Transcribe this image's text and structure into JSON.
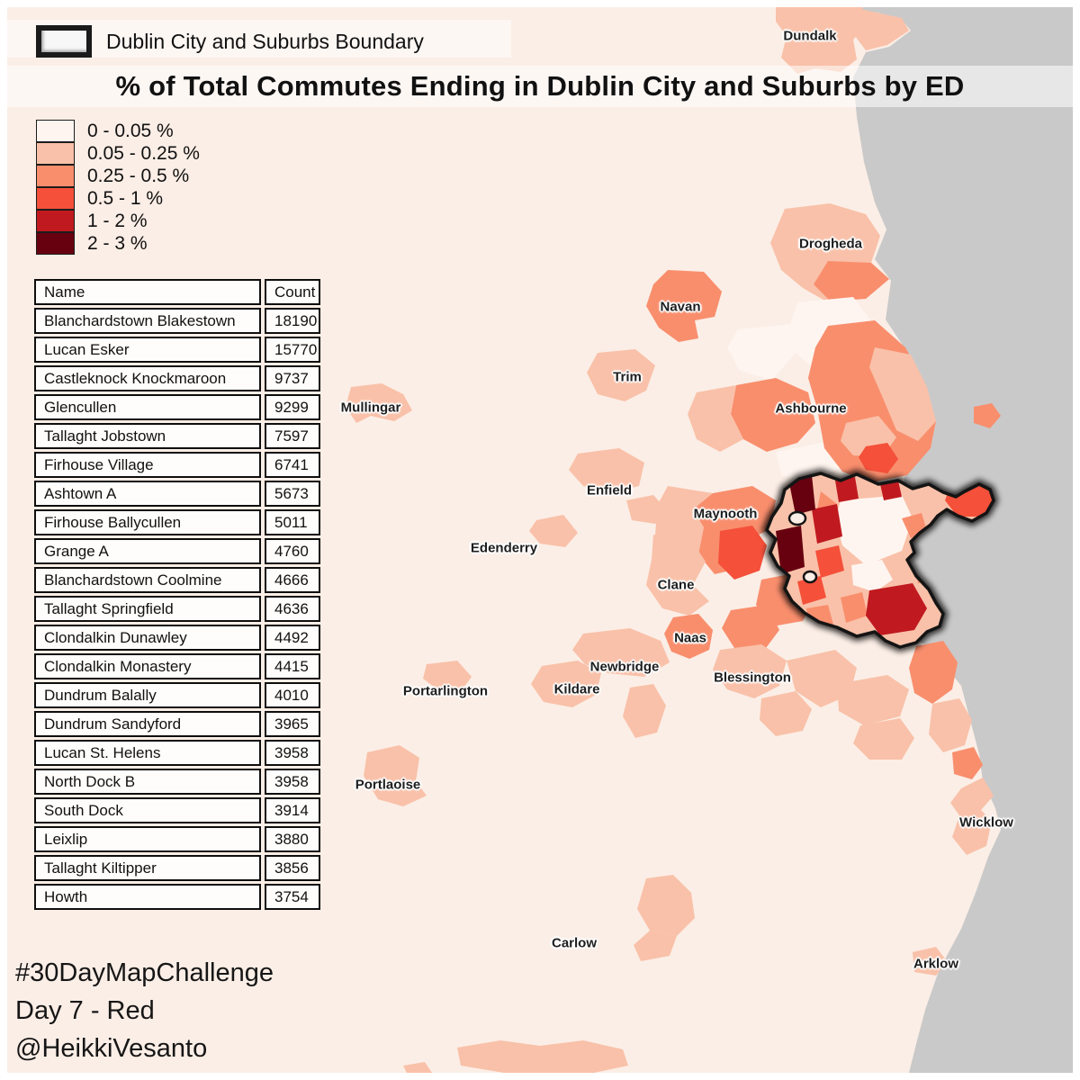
{
  "boundary_legend": {
    "label": "Dublin City and Suburbs Boundary"
  },
  "title": "% of Total Commutes Ending in Dublin City and Suburbs by ED",
  "color_legend": {
    "classes": [
      {
        "label": "0 - 0.05 %",
        "color": "#fff5f0"
      },
      {
        "label": "0.05 - 0.25 %",
        "color": "#f9c1a9"
      },
      {
        "label": "0.25 - 0.5 %",
        "color": "#f98e6d"
      },
      {
        "label": "0.5 - 1 %",
        "color": "#f4503a"
      },
      {
        "label": "1 - 2 %",
        "color": "#c01a20"
      },
      {
        "label": "2 - 3 %",
        "color": "#67010f"
      }
    ]
  },
  "table": {
    "headers": [
      "Name",
      "Count"
    ],
    "rows": [
      {
        "name": "Blanchardstown Blakestown",
        "count": "18190"
      },
      {
        "name": "Lucan Esker",
        "count": "15770"
      },
      {
        "name": "Castleknock Knockmaroon",
        "count": "9737"
      },
      {
        "name": "Glencullen",
        "count": "9299"
      },
      {
        "name": "Tallaght Jobstown",
        "count": "7597"
      },
      {
        "name": "Firhouse Village",
        "count": "6741"
      },
      {
        "name": "Ashtown A",
        "count": "5673"
      },
      {
        "name": "Firhouse Ballycullen",
        "count": "5011"
      },
      {
        "name": "Grange A",
        "count": "4760"
      },
      {
        "name": "Blanchardstown Coolmine",
        "count": "4666"
      },
      {
        "name": "Tallaght Springfield",
        "count": "4636"
      },
      {
        "name": "Clondalkin Dunawley",
        "count": "4492"
      },
      {
        "name": "Clondalkin Monastery",
        "count": "4415"
      },
      {
        "name": "Dundrum Balally",
        "count": "4010"
      },
      {
        "name": "Dundrum Sandyford",
        "count": "3965"
      },
      {
        "name": "Lucan St. Helens",
        "count": "3958"
      },
      {
        "name": "North Dock B",
        "count": "3958"
      },
      {
        "name": "South Dock",
        "count": "3914"
      },
      {
        "name": "Leixlip",
        "count": "3880"
      },
      {
        "name": "Tallaght Kiltipper",
        "count": "3856"
      },
      {
        "name": "Howth",
        "count": "3754"
      }
    ]
  },
  "map": {
    "towns": [
      "Dundalk",
      "Drogheda",
      "Navan",
      "Trim",
      "Mullingar",
      "Ashbourne",
      "Enfield",
      "Maynooth",
      "Edenderry",
      "Clane",
      "Naas",
      "Newbridge",
      "Kildare",
      "Blessington",
      "Portarlington",
      "Portlaoise",
      "Carlow",
      "Wicklow",
      "Arklow"
    ]
  },
  "credits": {
    "line1": "#30DayMapChallenge",
    "line2": "Day 7 - Red",
    "line3": "@HeikkiVesanto"
  },
  "colors": {
    "land": "#fbeee6",
    "sea": "#c9c9c9",
    "boundary": "#141414",
    "page": "#ffffff"
  }
}
